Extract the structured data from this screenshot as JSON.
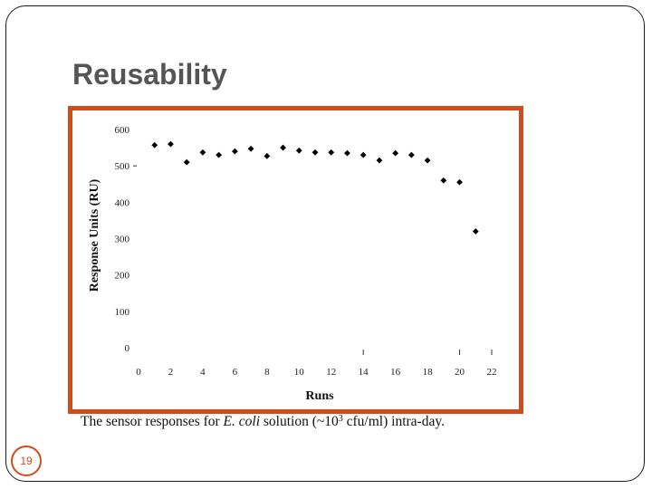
{
  "slide": {
    "title": "Reusability",
    "page_number": "19",
    "caption": {
      "prefix": "The sensor responses for ",
      "organism": "E. coli",
      "middle": " solution (~10",
      "exponent": "3",
      "suffix": " cfu/ml) intra-day."
    },
    "frame_color": "#cf4d1c"
  },
  "chart_data": {
    "type": "scatter",
    "xlabel": "Runs",
    "ylabel": "Response Units (RU)",
    "xlim": [
      0,
      22
    ],
    "ylim": [
      0,
      600
    ],
    "x_ticks": [
      0,
      2,
      4,
      6,
      8,
      10,
      12,
      14,
      16,
      18,
      20,
      22
    ],
    "y_ticks": [
      0,
      100,
      200,
      300,
      400,
      500,
      600
    ],
    "grid": false,
    "marker": "diamond",
    "marker_color": "#000000",
    "x": [
      1,
      2,
      3,
      4,
      5,
      6,
      7,
      8,
      9,
      10,
      11,
      12,
      13,
      14,
      15,
      16,
      17,
      18,
      19,
      20,
      21
    ],
    "y": [
      557,
      560,
      510,
      537,
      530,
      540,
      547,
      527,
      550,
      542,
      537,
      537,
      535,
      530,
      515,
      535,
      530,
      515,
      460,
      455,
      320
    ]
  }
}
